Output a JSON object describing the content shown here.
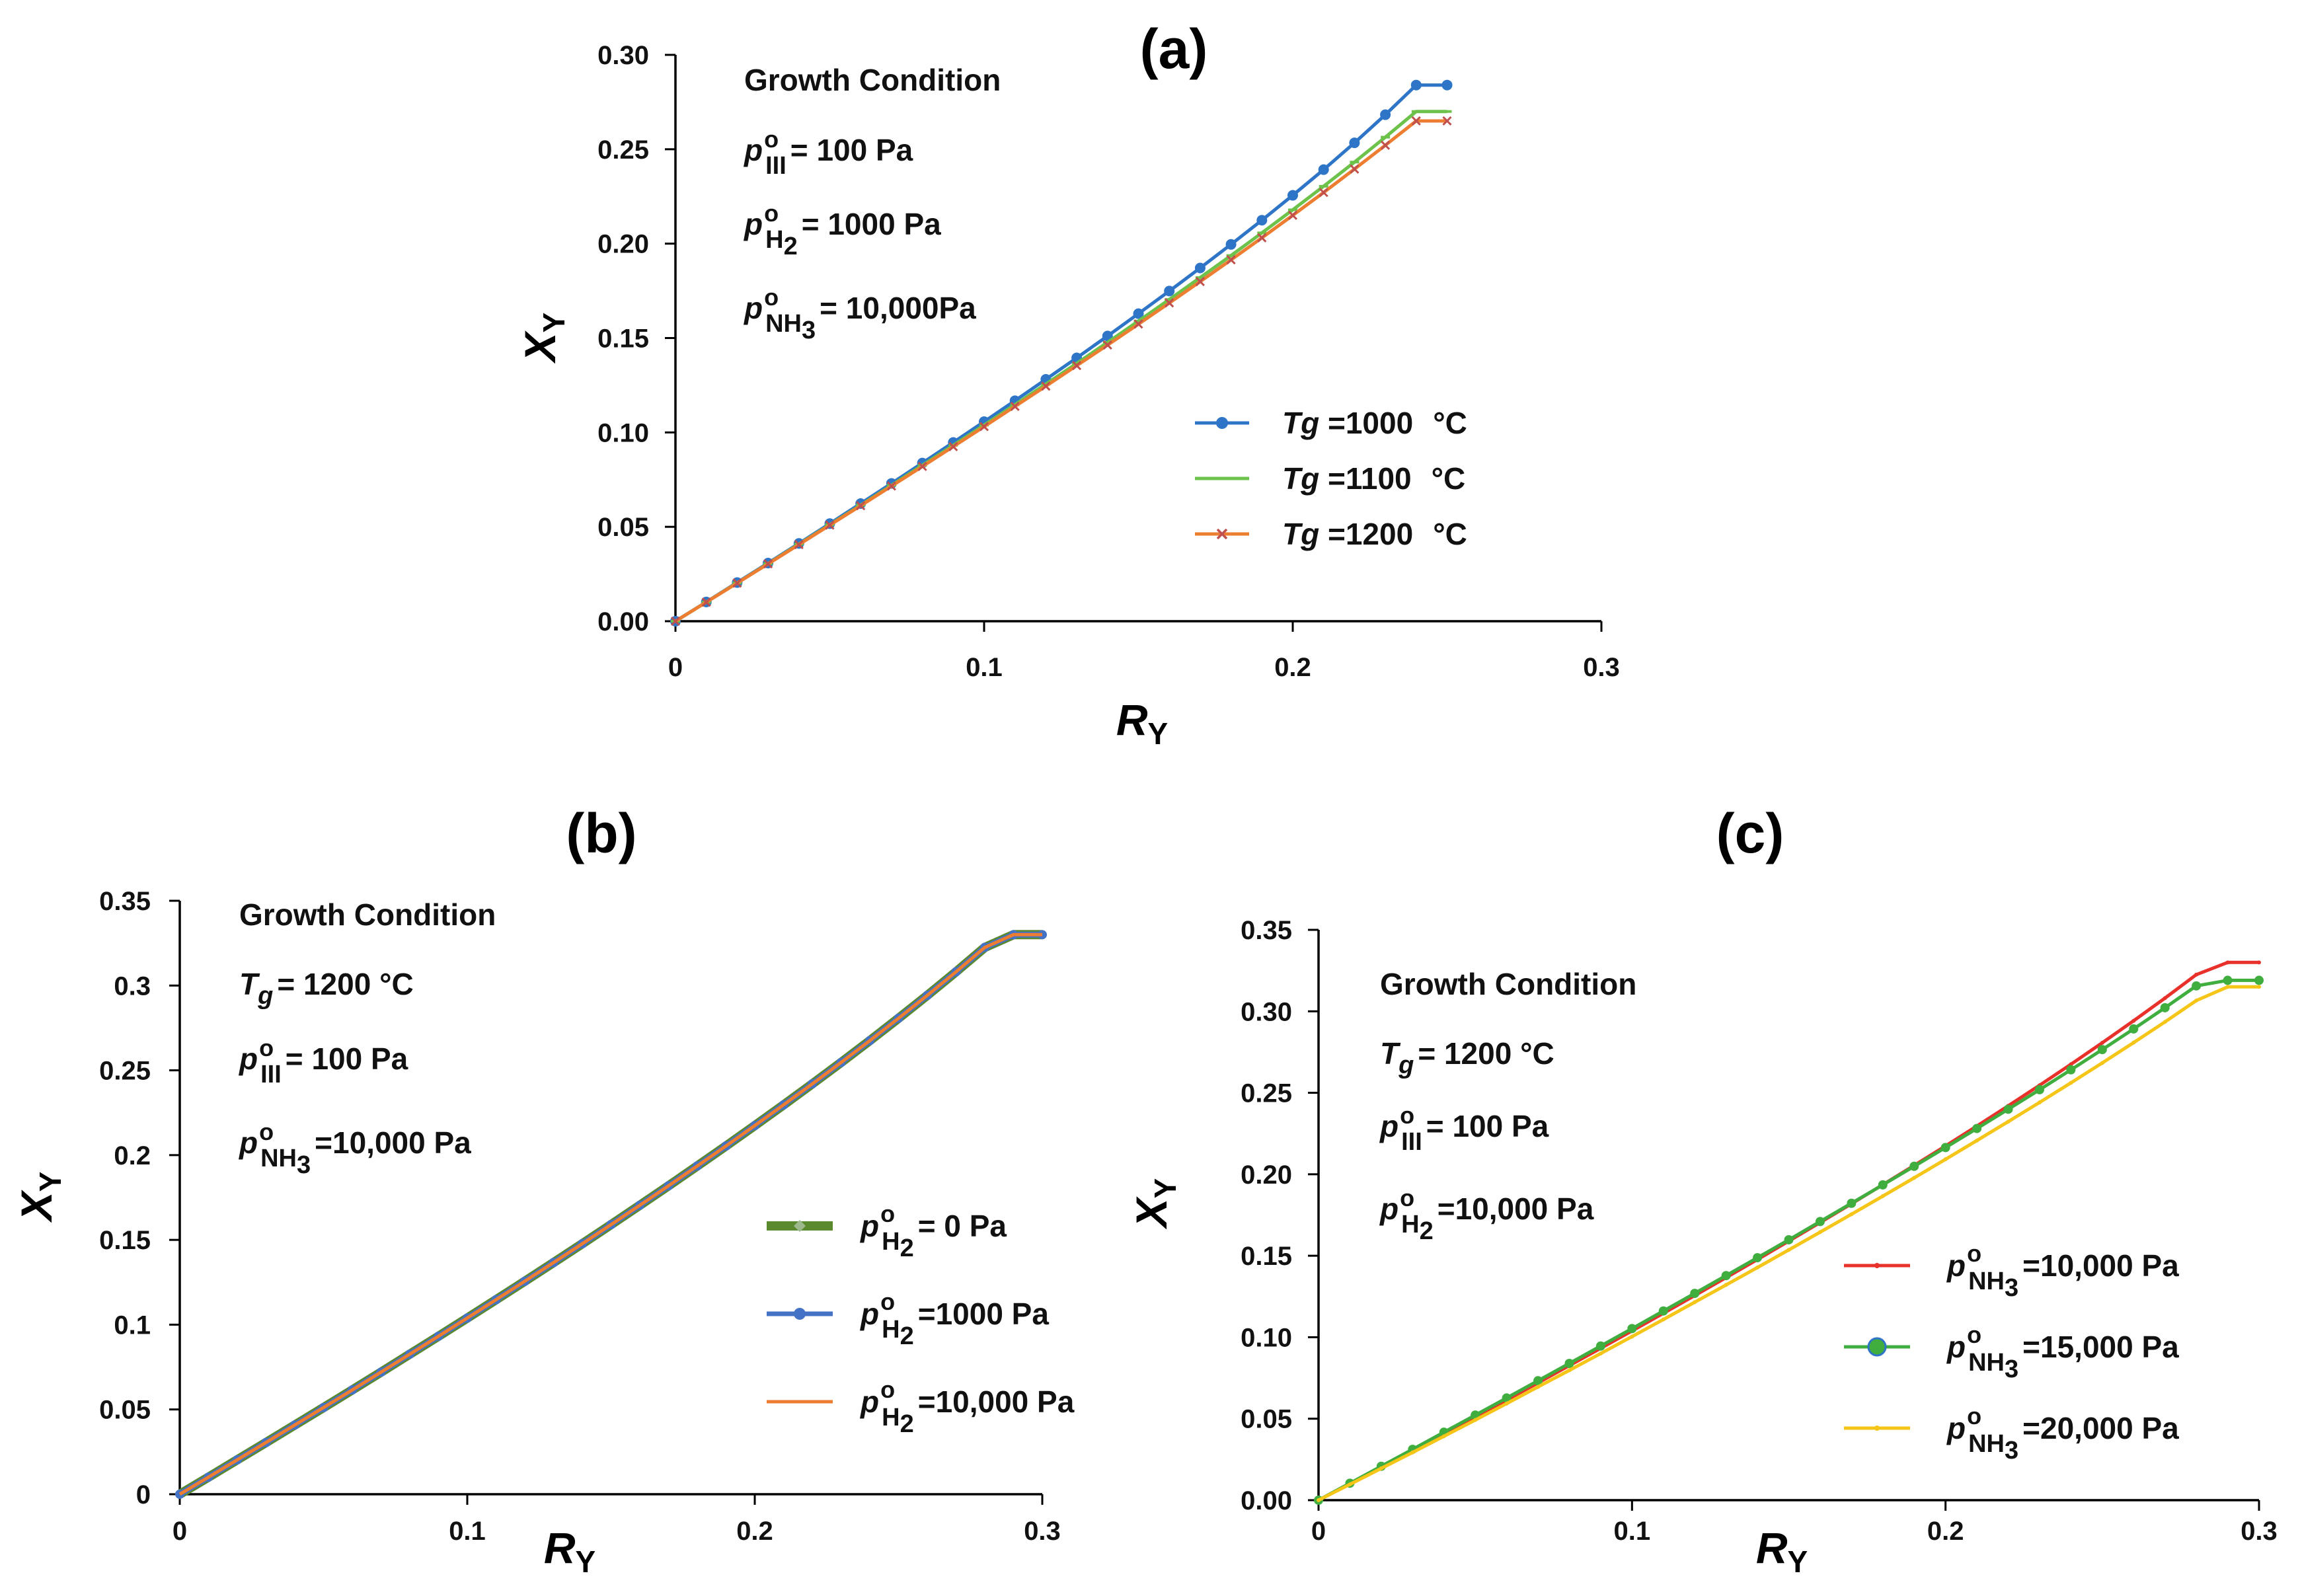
{
  "chart_data": [
    {
      "type": "line",
      "panel_title": "(a)",
      "xlabel": "R",
      "xlabel_sub": "Y",
      "ylabel": "X",
      "ylabel_sub": "Y",
      "xlim": [
        0,
        0.3
      ],
      "ylim": [
        0,
        0.3
      ],
      "xticks": [
        "0",
        "0.1",
        "0.2",
        "0.3"
      ],
      "yticks": [
        "0.00",
        "0.05",
        "0.10",
        "0.15",
        "0.20",
        "0.25",
        "0.30"
      ],
      "grid": false,
      "legend": "center-right",
      "annotation": {
        "heading": "Growth Condition",
        "lines": [
          {
            "sym": "p",
            "sup": "o",
            "sub": "III",
            "text": "= 100 Pa"
          },
          {
            "sym": "p",
            "sup": "o",
            "sub": "H",
            "sub2": "2",
            "text": "= 1000  Pa"
          },
          {
            "sym": "p",
            "sup": "o",
            "sub": "NH",
            "sub2": "3",
            "text": "= 10,000Pa"
          }
        ]
      },
      "x": [
        0,
        0.01,
        0.02,
        0.03,
        0.04,
        0.05,
        0.06,
        0.07,
        0.08,
        0.09,
        0.1,
        0.11,
        0.12,
        0.13,
        0.14,
        0.15,
        0.16,
        0.17,
        0.18,
        0.19,
        0.2,
        0.21,
        0.22,
        0.23,
        0.24,
        0.25
      ],
      "series": [
        {
          "name": "Tg =1000",
          "lbl_var": "Tg",
          "lbl_val": " =1000",
          "unit": "°C",
          "color": "#2E75C8",
          "marker": "circle",
          "values": [
            0,
            0.0102,
            0.0205,
            0.0308,
            0.0412,
            0.0517,
            0.0623,
            0.073,
            0.0838,
            0.0947,
            0.1057,
            0.1168,
            0.1281,
            0.1395,
            0.1511,
            0.1629,
            0.1749,
            0.1871,
            0.1996,
            0.2124,
            0.2256,
            0.2392,
            0.2534,
            0.2683,
            0.284,
            0.284
          ]
        },
        {
          "name": "Tg =1100",
          "lbl_var": "Tg",
          "lbl_val": " =1100",
          "unit": "°C",
          "color": "#6CC24A",
          "marker": "dash",
          "values": [
            0,
            0.0101,
            0.0203,
            0.0305,
            0.0408,
            0.0511,
            0.0615,
            0.072,
            0.0826,
            0.0932,
            0.1039,
            0.1147,
            0.1256,
            0.1366,
            0.1477,
            0.159,
            0.1704,
            0.182,
            0.1937,
            0.2057,
            0.2179,
            0.2304,
            0.2432,
            0.2564,
            0.27,
            0.27
          ]
        },
        {
          "name": "Tg =1200",
          "lbl_var": "Tg",
          "lbl_val": " =1200",
          "unit": "°C",
          "color": "#ED7D31",
          "marker": "x",
          "values": [
            0,
            0.0101,
            0.0202,
            0.0304,
            0.0406,
            0.0509,
            0.0612,
            0.0716,
            0.082,
            0.0925,
            0.1031,
            0.1138,
            0.1245,
            0.1354,
            0.1463,
            0.1574,
            0.1686,
            0.1799,
            0.1914,
            0.2031,
            0.215,
            0.2271,
            0.2395,
            0.2521,
            0.265,
            0.265
          ]
        }
      ]
    },
    {
      "type": "line",
      "panel_title": "(b)",
      "xlabel": "R",
      "xlabel_sub": "Y",
      "ylabel": "X",
      "ylabel_sub": "Y",
      "xlim": [
        0,
        0.3
      ],
      "ylim": [
        0,
        0.35
      ],
      "xticks": [
        "0",
        "0.1",
        "0.2",
        "0.3"
      ],
      "yticks": [
        "0",
        "0.05",
        "0.1",
        "0.15",
        "0.2",
        "0.25",
        "0.3",
        "0.35"
      ],
      "grid": false,
      "legend": "center-right",
      "annotation": {
        "heading": "Growth Condition",
        "lines": [
          {
            "sym": "T",
            "sub": "g",
            "text": "= 1200  °C"
          },
          {
            "sym": "p",
            "sup": "o",
            "sub": "III",
            "text": "= 100 Pa"
          },
          {
            "sym": "p",
            "sup": "o",
            "sub": "NH",
            "sub2": "3",
            "text": "=10,000 Pa"
          }
        ]
      },
      "x": [
        0,
        0.01,
        0.02,
        0.03,
        0.04,
        0.05,
        0.06,
        0.07,
        0.08,
        0.09,
        0.1,
        0.11,
        0.12,
        0.13,
        0.14,
        0.15,
        0.16,
        0.17,
        0.18,
        0.19,
        0.2,
        0.21,
        0.22,
        0.23,
        0.24,
        0.25,
        0.26,
        0.27,
        0.28,
        0.29,
        0.3
      ],
      "series": [
        {
          "name": "p H2 = 0 Pa",
          "lbl_text": "= 0 Pa",
          "color": "#5B8A2E",
          "marker": "diamond",
          "values": [
            0,
            0.0101,
            0.0203,
            0.0305,
            0.0408,
            0.0511,
            0.0615,
            0.072,
            0.0826,
            0.0932,
            0.1039,
            0.1147,
            0.1256,
            0.1366,
            0.1477,
            0.159,
            0.1704,
            0.1819,
            0.1936,
            0.2054,
            0.2174,
            0.2296,
            0.242,
            0.2546,
            0.2675,
            0.2807,
            0.2942,
            0.3081,
            0.3225,
            0.33,
            0.33
          ]
        },
        {
          "name": "p H2 = 1000 Pa",
          "lbl_text": "=1000  Pa",
          "color": "#4472C4",
          "marker": "circle",
          "values": [
            0,
            0.0101,
            0.0203,
            0.0305,
            0.0408,
            0.0511,
            0.0615,
            0.072,
            0.0826,
            0.0932,
            0.1039,
            0.1147,
            0.1256,
            0.1366,
            0.1477,
            0.159,
            0.1704,
            0.1819,
            0.1936,
            0.2054,
            0.2174,
            0.2296,
            0.242,
            0.2546,
            0.2675,
            0.2807,
            0.2942,
            0.3081,
            0.3225,
            0.33,
            0.33
          ]
        },
        {
          "name": "p H2 = 10,000 Pa",
          "lbl_text": "=10,000 Pa",
          "color": "#ED7D31",
          "marker": "none",
          "values": [
            0,
            0.0101,
            0.0203,
            0.0305,
            0.0408,
            0.0511,
            0.0615,
            0.072,
            0.0826,
            0.0932,
            0.1039,
            0.1147,
            0.1256,
            0.1366,
            0.1477,
            0.159,
            0.1704,
            0.1819,
            0.1936,
            0.2054,
            0.2174,
            0.2296,
            0.242,
            0.2546,
            0.2675,
            0.2807,
            0.2942,
            0.3081,
            0.3225,
            0.33,
            0.33
          ]
        }
      ]
    },
    {
      "type": "line",
      "panel_title": "(c)",
      "xlabel": "R",
      "xlabel_sub": "Y",
      "ylabel": "X",
      "ylabel_sub": "Y",
      "xlim": [
        0,
        0.3
      ],
      "ylim": [
        0,
        0.35
      ],
      "xticks": [
        "0",
        "0.1",
        "0.2",
        "0.3"
      ],
      "yticks": [
        "0.00",
        "0.05",
        "0.10",
        "0.15",
        "0.20",
        "0.25",
        "0.30",
        "0.35"
      ],
      "grid": false,
      "legend": "bottom-right",
      "annotation": {
        "heading": "Growth Condition",
        "lines": [
          {
            "sym": "T",
            "sub": "g",
            "text": "= 1200  °C"
          },
          {
            "sym": "p",
            "sup": "o",
            "sub": "III",
            "text": "= 100 Pa"
          },
          {
            "sym": "p",
            "sup": "o",
            "sub": "H",
            "sub2": "2",
            "text": "=10,000 Pa"
          }
        ]
      },
      "x": [
        0,
        0.01,
        0.02,
        0.03,
        0.04,
        0.05,
        0.06,
        0.07,
        0.08,
        0.09,
        0.1,
        0.11,
        0.12,
        0.13,
        0.14,
        0.15,
        0.16,
        0.17,
        0.18,
        0.19,
        0.2,
        0.21,
        0.22,
        0.23,
        0.24,
        0.25,
        0.26,
        0.27,
        0.28,
        0.29,
        0.3
      ],
      "series": [
        {
          "name": "p NH3 = 10,000 Pa",
          "lbl_text": "=10,000 Pa",
          "color": "#E8312A",
          "marker": "dot",
          "values": [
            0,
            0.0101,
            0.0203,
            0.0305,
            0.0408,
            0.0511,
            0.0615,
            0.072,
            0.0826,
            0.0932,
            0.1039,
            0.1147,
            0.1256,
            0.1366,
            0.1477,
            0.159,
            0.1704,
            0.1819,
            0.1936,
            0.2054,
            0.2174,
            0.2296,
            0.242,
            0.2546,
            0.2675,
            0.2807,
            0.2942,
            0.3081,
            0.3225,
            0.33,
            0.33
          ]
        },
        {
          "name": "p NH3 = 15,000 Pa",
          "lbl_text": "=15,000 Pa",
          "color": "#3FAE3F",
          "marker": "circle",
          "values": [
            0,
            0.0104,
            0.0208,
            0.0312,
            0.0417,
            0.0522,
            0.0627,
            0.0733,
            0.0839,
            0.0946,
            0.1053,
            0.1161,
            0.1269,
            0.1378,
            0.1488,
            0.1598,
            0.171,
            0.1822,
            0.1935,
            0.2049,
            0.2164,
            0.2281,
            0.2399,
            0.2519,
            0.2641,
            0.2765,
            0.2892,
            0.3022,
            0.3156,
            0.319,
            0.319
          ]
        },
        {
          "name": "p NH3 = 20,000 Pa",
          "lbl_text": "=20,000 Pa",
          "color": "#F5C518",
          "marker": "dot",
          "values": [
            0,
            0.0097,
            0.0195,
            0.0293,
            0.0392,
            0.0492,
            0.0593,
            0.0695,
            0.0797,
            0.09,
            0.1004,
            0.1109,
            0.1215,
            0.1321,
            0.1428,
            0.1536,
            0.1645,
            0.1755,
            0.1866,
            0.1978,
            0.2092,
            0.2207,
            0.2323,
            0.2441,
            0.2561,
            0.2683,
            0.2808,
            0.2935,
            0.3066,
            0.315,
            0.315
          ]
        }
      ]
    }
  ]
}
